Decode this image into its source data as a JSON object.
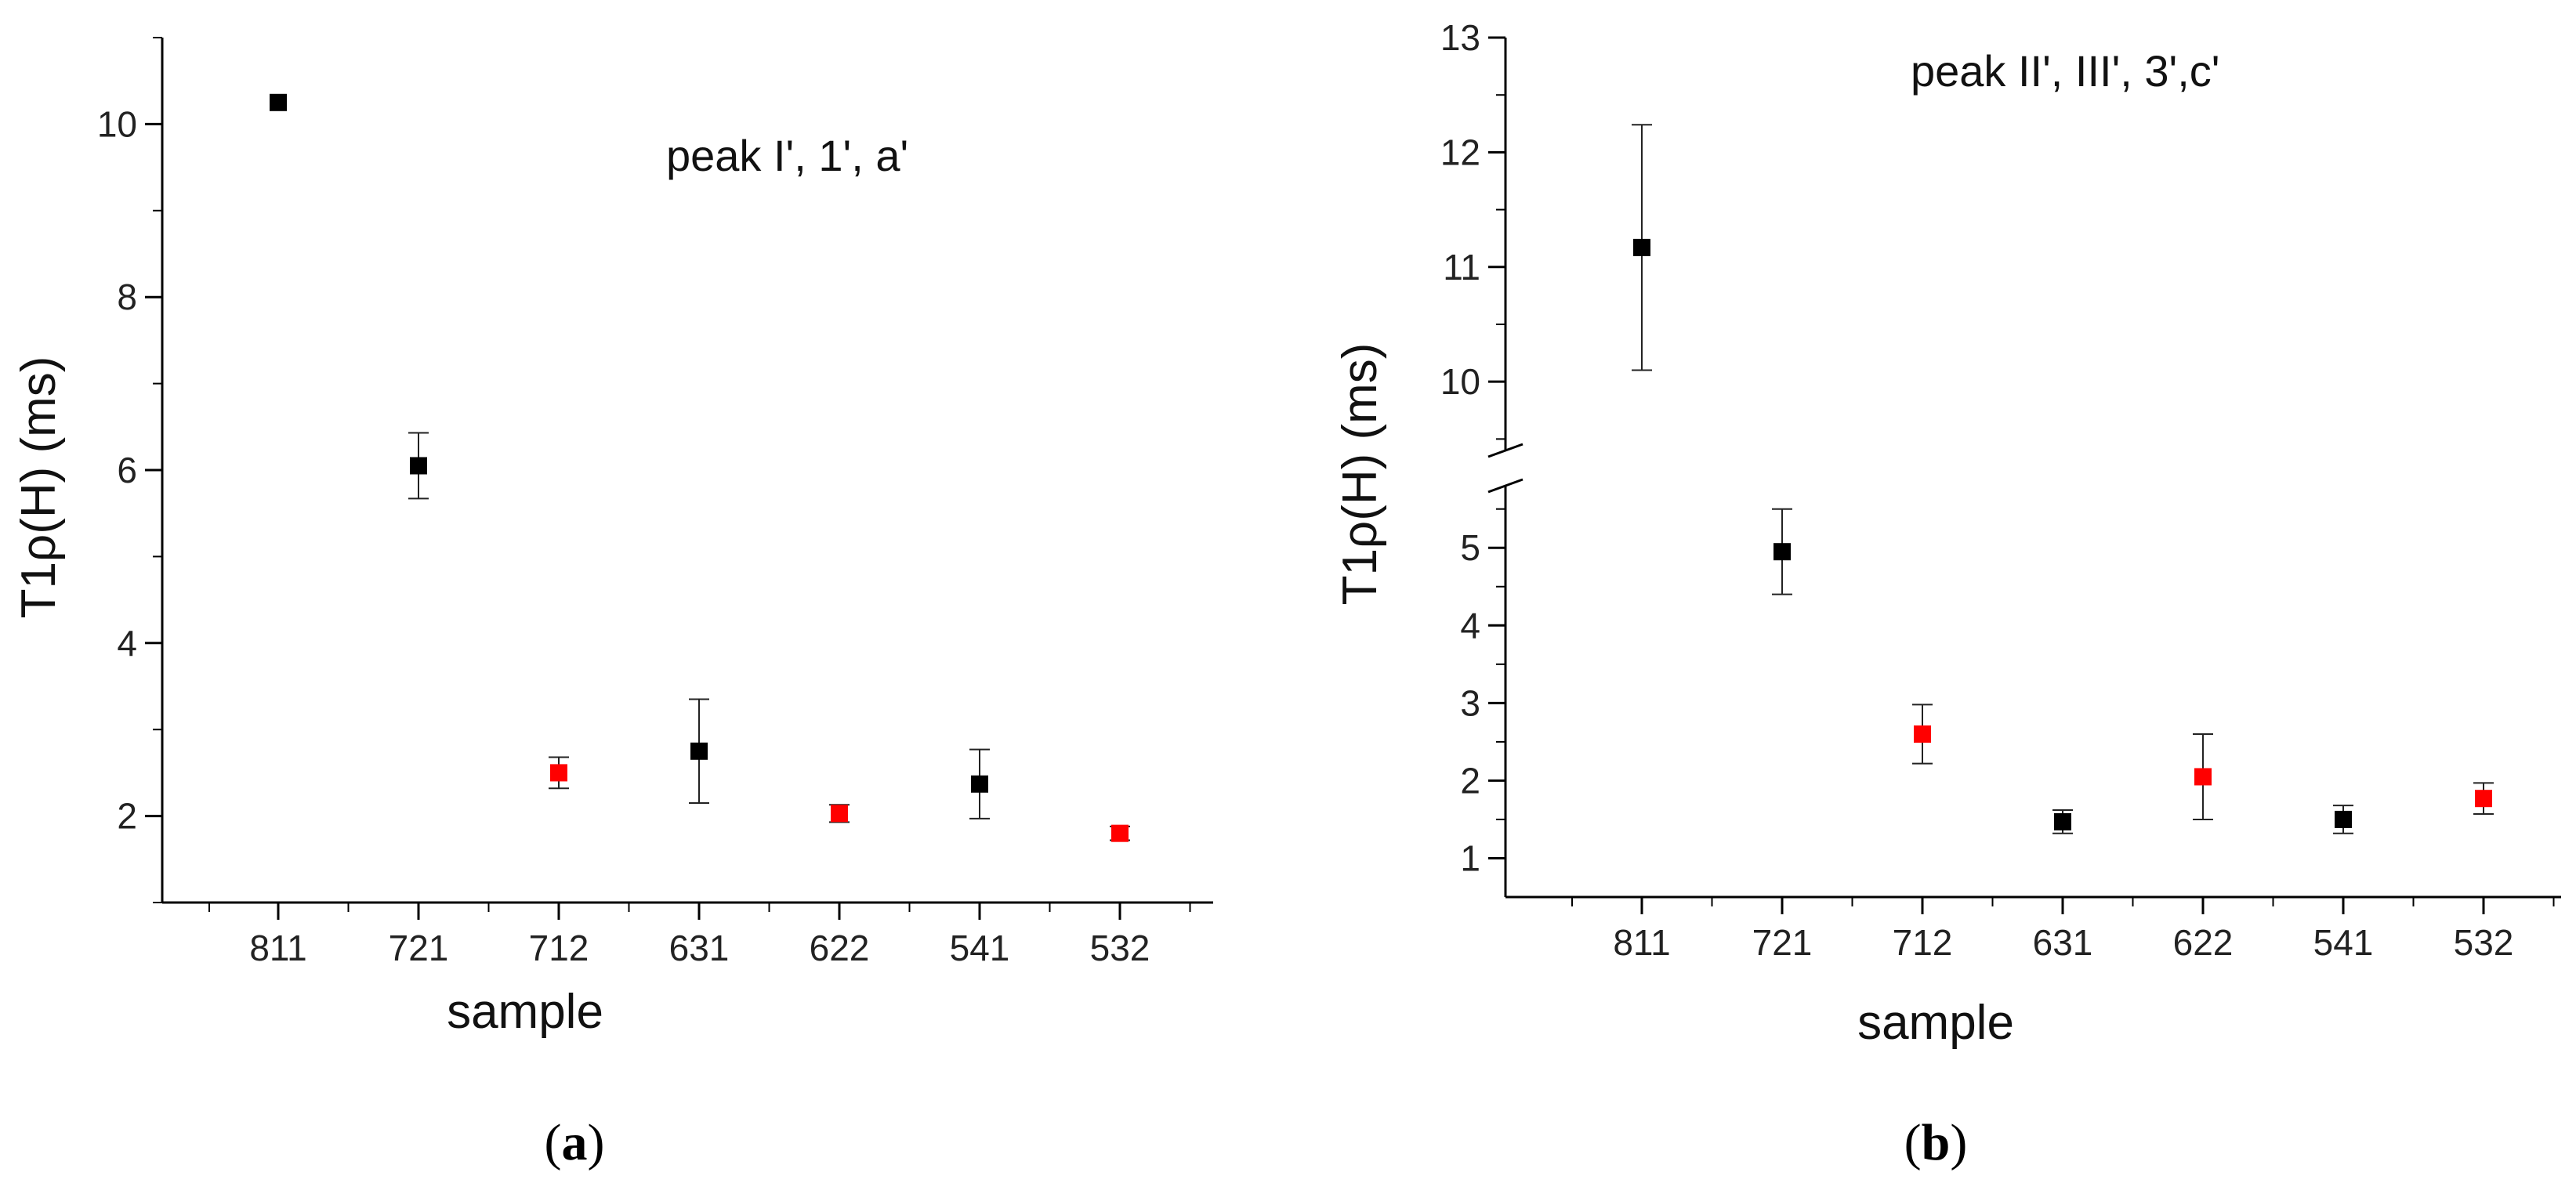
{
  "chart_data": [
    {
      "panel": "(a)",
      "type": "scatter",
      "annotation": "peak I', 1', a'",
      "xlabel": "sample",
      "ylabel": "T1ρ(H) (ms)",
      "categories": [
        "811",
        "721",
        "712",
        "631",
        "622",
        "541",
        "532"
      ],
      "ylim": [
        1,
        11
      ],
      "yticks": [
        "2",
        "4",
        "6",
        "8",
        "10"
      ],
      "points": [
        {
          "x": "811",
          "y": 10.25,
          "err": 0.0,
          "color": "#000000"
        },
        {
          "x": "721",
          "y": 6.05,
          "err": 0.38,
          "color": "#000000"
        },
        {
          "x": "712",
          "y": 2.5,
          "err": 0.18,
          "color": "#ff0000"
        },
        {
          "x": "631",
          "y": 2.75,
          "err": 0.6,
          "color": "#000000"
        },
        {
          "x": "622",
          "y": 2.03,
          "err": 0.1,
          "color": "#ff0000"
        },
        {
          "x": "541",
          "y": 2.37,
          "err": 0.4,
          "color": "#000000"
        },
        {
          "x": "532",
          "y": 1.8,
          "err": 0.08,
          "color": "#ff0000"
        }
      ]
    },
    {
      "panel": "(b)",
      "type": "scatter",
      "annotation": "peak II', III', 3',c'",
      "xlabel": "sample",
      "ylabel": "T1ρ(H)  (ms)",
      "categories": [
        "811",
        "721",
        "712",
        "631",
        "622",
        "541",
        "532"
      ],
      "y_break": true,
      "ylim_lower": [
        0.5,
        5.8
      ],
      "ylim_upper": [
        9.4,
        13
      ],
      "yticks_lower": [
        "1",
        "2",
        "3",
        "4",
        "5"
      ],
      "yticks_upper": [
        "10",
        "11",
        "12",
        "13"
      ],
      "points": [
        {
          "x": "811",
          "y": 11.17,
          "err": 1.07,
          "color": "#000000"
        },
        {
          "x": "721",
          "y": 4.95,
          "err": 0.55,
          "color": "#000000"
        },
        {
          "x": "712",
          "y": 2.6,
          "err": 0.38,
          "color": "#ff0000"
        },
        {
          "x": "631",
          "y": 1.47,
          "err": 0.15,
          "color": "#000000"
        },
        {
          "x": "622",
          "y": 2.05,
          "err": 0.55,
          "color": "#ff0000"
        },
        {
          "x": "541",
          "y": 1.5,
          "err": 0.18,
          "color": "#000000"
        },
        {
          "x": "532",
          "y": 1.77,
          "err": 0.2,
          "color": "#ff0000"
        }
      ]
    }
  ],
  "panel_labels": {
    "a": {
      "open": "(",
      "letter": "a",
      "close": ")"
    },
    "b": {
      "open": "(",
      "letter": "b",
      "close": ")"
    }
  }
}
